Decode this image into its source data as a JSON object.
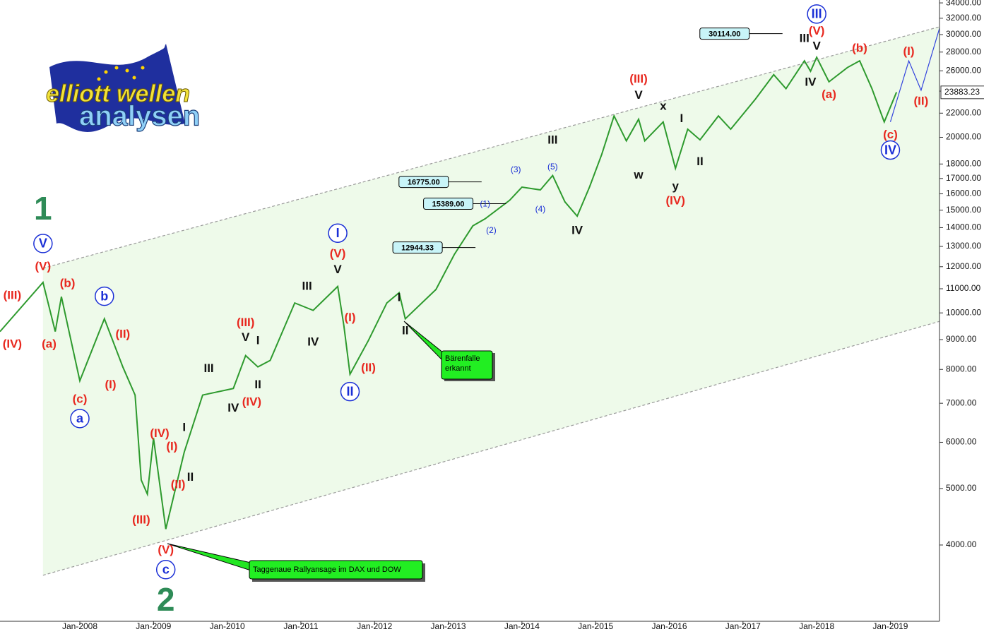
{
  "logo": {
    "line1": "elliott wellen",
    "line2": "analysen"
  },
  "chart_data": {
    "type": "line",
    "log_scale": true,
    "grid": false,
    "channel_fill": "#eefaea",
    "xlim": [
      "Dec-2006",
      "Sep-2019"
    ],
    "ylim": [
      2960,
      34390
    ],
    "xticks": [
      "Jan-2008",
      "Jan-2009",
      "Jan-2010",
      "Jan-2011",
      "Jan-2012",
      "Jan-2013",
      "Jan-2014",
      "Jan-2015",
      "Jan-2016",
      "Jan-2017",
      "Jan-2018",
      "Jan-2019"
    ],
    "yticks": [
      {
        "value": 4000,
        "label": "4000.00"
      },
      {
        "value": 5000,
        "label": "5000.00"
      },
      {
        "value": 6000,
        "label": "6000.00"
      },
      {
        "value": 7000,
        "label": "7000.00"
      },
      {
        "value": 8000,
        "label": "8000.00"
      },
      {
        "value": 9000,
        "label": "9000.00"
      },
      {
        "value": 10000,
        "label": "10000.00"
      },
      {
        "value": 11000,
        "label": "11000.00"
      },
      {
        "value": 12000,
        "label": "12000.00"
      },
      {
        "value": 13000,
        "label": "13000.00"
      },
      {
        "value": 14000,
        "label": "14000.00"
      },
      {
        "value": 15000,
        "label": "15000.00"
      },
      {
        "value": 16000,
        "label": "16000.00"
      },
      {
        "value": 17000,
        "label": "17000.00"
      },
      {
        "value": 18000,
        "label": "18000.00"
      },
      {
        "value": 20000,
        "label": "20000.00"
      },
      {
        "value": 22000,
        "label": "22000.00"
      },
      {
        "value": 24000,
        "label": "24000.00"
      },
      {
        "value": 26000,
        "label": "26000.00"
      },
      {
        "value": 28000,
        "label": "28000.00"
      },
      {
        "value": 30000,
        "label": "30000.00"
      },
      {
        "value": 32000,
        "label": "32000.00"
      },
      {
        "value": 34000,
        "label": "34000.00"
      }
    ],
    "series": [
      {
        "color": "#2e9a2e",
        "x": [
          "Dec-2006",
          "Jul-2007",
          "Sep-2007",
          "Oct-2007",
          "Jan-2008",
          "May-2008",
          "Aug-2008",
          "Oct-2008",
          "Nov-2008",
          "Dec-2008",
          "Jan-2009",
          "Mar-2009",
          "Jun-2009",
          "Sep-2009",
          "Feb-2010",
          "Apr-2010",
          "Jun-2010",
          "Aug-2010",
          "Dec-2010",
          "Mar-2011",
          "Jul-2011",
          "Aug-2011",
          "Sep-2011",
          "Dec-2011",
          "Mar-2012",
          "May-2012",
          "Jun-2012",
          "Nov-2012",
          "Feb-2013",
          "May-2013",
          "Jul-2013",
          "Nov-2013",
          "Jan-2014",
          "Apr-2014",
          "Jun-2014",
          "Aug-2014",
          "Oct-2014",
          "Dec-2014",
          "Feb-2015",
          "Apr-2015",
          "Jun-2015",
          "Aug-2015",
          "Sep-2015",
          "Dec-2015",
          "Feb-2016",
          "Apr-2016",
          "Jun-2016",
          "Sep-2016",
          "Nov-2016",
          "Mar-2017",
          "Jun-2017",
          "Aug-2017",
          "Nov-2017",
          "Dec-2017",
          "Jan-2018",
          "Mar-2018",
          "Jun-2018",
          "Aug-2018",
          "Oct-2018",
          "Dec-2018",
          "Feb-2019"
        ],
        "values": [
          9290,
          11280,
          9290,
          10660,
          7650,
          9770,
          8080,
          7230,
          5170,
          4890,
          6100,
          4260,
          5770,
          7230,
          7420,
          8450,
          8080,
          8290,
          10400,
          10100,
          11100,
          9510,
          7850,
          8970,
          10400,
          10830,
          9770,
          10970,
          12600,
          14100,
          14500,
          15600,
          16430,
          16250,
          17200,
          15500,
          14650,
          16430,
          18700,
          21760,
          19720,
          21480,
          19720,
          21250,
          17690,
          20650,
          19800,
          21760,
          20650,
          23240,
          25610,
          24230,
          27050,
          25960,
          27430,
          24900,
          26340,
          27050,
          24230,
          21250,
          23900
        ]
      },
      {
        "color": "#3344dd",
        "x": [
          "Jan-2019",
          "Apr-2019",
          "Jun-2019",
          "Sep-2019"
        ],
        "values": [
          21250,
          27050,
          24080,
          30760
        ]
      },
      {
        "color": "#999999",
        "x": [
          "Jul-2007",
          "Sep-2019"
        ],
        "values": [
          11930,
          30940
        ]
      },
      {
        "color": "#999999",
        "x": [
          "Jul-2007",
          "Sep-2019"
        ],
        "values": [
          3550,
          9670
        ]
      }
    ],
    "last_price": {
      "value": 23883.23,
      "label": "23883.23"
    },
    "price_labels": [
      {
        "value": 12944.33,
        "label": "12944.33",
        "x": "Aug-2012"
      },
      {
        "value": 15389,
        "label": "15389.00",
        "x": "Jan-2013"
      },
      {
        "value": 16775,
        "label": "16775.00",
        "x": "Sep-2012"
      },
      {
        "value": 30114,
        "label": "30114.00",
        "x": "Oct-2016"
      }
    ],
    "annotations": [
      {
        "text": "1",
        "x": "Jul-2007",
        "y": 15000,
        "color": "#2e8b57",
        "style": "big"
      },
      {
        "text": "V",
        "x": "Jul-2007",
        "y": 13150,
        "color": "#1a2fd6",
        "style": "circle"
      },
      {
        "text": "(V)",
        "x": "Jul-2007",
        "y": 12030,
        "color": "#e8281f",
        "style": "plain"
      },
      {
        "text": "(III)",
        "x": "Feb-2007",
        "y": 10730,
        "color": "#e8281f",
        "style": "plain"
      },
      {
        "text": "(IV)",
        "x": "Feb-2007",
        "y": 8850,
        "color": "#e8281f",
        "style": "plain"
      },
      {
        "text": "(a)",
        "x": "Aug-2007",
        "y": 8850,
        "color": "#e8281f",
        "style": "plain"
      },
      {
        "text": "(b)",
        "x": "Nov-2007",
        "y": 11250,
        "color": "#e8281f",
        "style": "plain"
      },
      {
        "text": "b",
        "x": "May-2008",
        "y": 10680,
        "color": "#1a2fd6",
        "style": "circle"
      },
      {
        "text": "(c)",
        "x": "Jan-2008",
        "y": 7120,
        "color": "#e8281f",
        "style": "plain"
      },
      {
        "text": "a",
        "x": "Jan-2008",
        "y": 6590,
        "color": "#1a2fd6",
        "style": "circle"
      },
      {
        "text": "(II)",
        "x": "Aug-2008",
        "y": 9200,
        "color": "#e8281f",
        "style": "plain"
      },
      {
        "text": "(I)",
        "x": "Jun-2008",
        "y": 7540,
        "color": "#e8281f",
        "style": "plain"
      },
      {
        "text": "(IV)",
        "x": "Feb-2009",
        "y": 6220,
        "color": "#e8281f",
        "style": "plain"
      },
      {
        "text": "(I)",
        "x": "Apr-2009",
        "y": 5910,
        "color": "#e8281f",
        "style": "plain"
      },
      {
        "text": "(II)",
        "x": "May-2009",
        "y": 5080,
        "color": "#e8281f",
        "style": "plain"
      },
      {
        "text": "(III)",
        "x": "Nov-2008",
        "y": 4420,
        "color": "#e8281f",
        "style": "plain"
      },
      {
        "text": "(V)",
        "x": "Mar-2009",
        "y": 3930,
        "color": "#e8281f",
        "style": "plain"
      },
      {
        "text": "c",
        "x": "Mar-2009",
        "y": 3630,
        "color": "#1a2fd6",
        "style": "circle"
      },
      {
        "text": "2",
        "x": "Mar-2009",
        "y": 3200,
        "color": "#2e8b57",
        "style": "big"
      },
      {
        "text": "I",
        "x": "Jun-2009",
        "y": 6370,
        "color": "#111111",
        "style": "plain"
      },
      {
        "text": "II",
        "x": "Jul-2009",
        "y": 5230,
        "color": "#111111",
        "style": "plain"
      },
      {
        "text": "III",
        "x": "Oct-2009",
        "y": 8040,
        "color": "#111111",
        "style": "plain"
      },
      {
        "text": "IV",
        "x": "Feb-2010",
        "y": 6880,
        "color": "#111111",
        "style": "plain"
      },
      {
        "text": "(IV)",
        "x": "May-2010",
        "y": 7040,
        "color": "#e8281f",
        "style": "plain"
      },
      {
        "text": "II",
        "x": "Jun-2010",
        "y": 7540,
        "color": "#111111",
        "style": "plain"
      },
      {
        "text": "(III)",
        "x": "Apr-2010",
        "y": 9640,
        "color": "#e8281f",
        "style": "plain"
      },
      {
        "text": "V",
        "x": "Apr-2010",
        "y": 9090,
        "color": "#111111",
        "style": "plain"
      },
      {
        "text": "I",
        "x": "Jun-2010",
        "y": 8970,
        "color": "#111111",
        "style": "plain"
      },
      {
        "text": "III",
        "x": "Feb-2011",
        "y": 11120,
        "color": "#111111",
        "style": "plain"
      },
      {
        "text": "IV",
        "x": "Mar-2011",
        "y": 8930,
        "color": "#111111",
        "style": "plain"
      },
      {
        "text": "I",
        "x": "Jul-2011",
        "y": 13700,
        "color": "#1a2fd6",
        "style": "circle"
      },
      {
        "text": "(V)",
        "x": "Jul-2011",
        "y": 12640,
        "color": "#e8281f",
        "style": "plain"
      },
      {
        "text": "V",
        "x": "Jul-2011",
        "y": 11880,
        "color": "#111111",
        "style": "plain"
      },
      {
        "text": "(I)",
        "x": "Sep-2011",
        "y": 9820,
        "color": "#e8281f",
        "style": "plain"
      },
      {
        "text": "(II)",
        "x": "Dec-2011",
        "y": 8060,
        "color": "#e8281f",
        "style": "plain"
      },
      {
        "text": "II",
        "x": "Sep-2011",
        "y": 7330,
        "color": "#1a2fd6",
        "style": "circle"
      },
      {
        "text": "I",
        "x": "May-2012",
        "y": 10640,
        "color": "#111111",
        "style": "plain"
      },
      {
        "text": "II",
        "x": "Jun-2012",
        "y": 9330,
        "color": "#111111",
        "style": "plain"
      },
      {
        "text": "(1)",
        "x": "Jul-2013",
        "y": 15400,
        "color": "#1a2fd6",
        "style": "small"
      },
      {
        "text": "(2)",
        "x": "Aug-2013",
        "y": 13860,
        "color": "#1a2fd6",
        "style": "small"
      },
      {
        "text": "(3)",
        "x": "Dec-2013",
        "y": 17620,
        "color": "#1a2fd6",
        "style": "small"
      },
      {
        "text": "(4)",
        "x": "Apr-2014",
        "y": 15070,
        "color": "#1a2fd6",
        "style": "small"
      },
      {
        "text": "(5)",
        "x": "Jun-2014",
        "y": 17820,
        "color": "#1a2fd6",
        "style": "small"
      },
      {
        "text": "III",
        "x": "Jun-2014",
        "y": 19800,
        "color": "#111111",
        "style": "plain"
      },
      {
        "text": "IV",
        "x": "Oct-2014",
        "y": 13860,
        "color": "#111111",
        "style": "plain"
      },
      {
        "text": "(III)",
        "x": "Aug-2015",
        "y": 25200,
        "color": "#e8281f",
        "style": "plain"
      },
      {
        "text": "V",
        "x": "Aug-2015",
        "y": 23640,
        "color": "#111111",
        "style": "plain"
      },
      {
        "text": "x",
        "x": "Dec-2015",
        "y": 22650,
        "color": "#111111",
        "style": "plain"
      },
      {
        "text": "w",
        "x": "Aug-2015",
        "y": 17260,
        "color": "#111111",
        "style": "plain"
      },
      {
        "text": "I",
        "x": "Mar-2016",
        "y": 21550,
        "color": "#111111",
        "style": "plain"
      },
      {
        "text": "II",
        "x": "Jun-2016",
        "y": 18180,
        "color": "#111111",
        "style": "plain"
      },
      {
        "text": "y",
        "x": "Feb-2016",
        "y": 16500,
        "color": "#111111",
        "style": "plain"
      },
      {
        "text": "(IV)",
        "x": "Feb-2016",
        "y": 15590,
        "color": "#e8281f",
        "style": "plain"
      },
      {
        "text": "III",
        "x": "Nov-2017",
        "y": 29600,
        "color": "#111111",
        "style": "plain"
      },
      {
        "text": "V",
        "x": "Jan-2018",
        "y": 28680,
        "color": "#111111",
        "style": "plain"
      },
      {
        "text": "(V)",
        "x": "Jan-2018",
        "y": 30450,
        "color": "#e8281f",
        "style": "plain"
      },
      {
        "text": "III",
        "x": "Jan-2018",
        "y": 32540,
        "color": "#1a2fd6",
        "style": "circle"
      },
      {
        "text": "IV",
        "x": "Dec-2017",
        "y": 24880,
        "color": "#111111",
        "style": "plain"
      },
      {
        "text": "(a)",
        "x": "Mar-2018",
        "y": 23720,
        "color": "#e8281f",
        "style": "plain"
      },
      {
        "text": "(b)",
        "x": "Aug-2018",
        "y": 28470,
        "color": "#e8281f",
        "style": "plain"
      },
      {
        "text": "(c)",
        "x": "Jan-2019",
        "y": 20210,
        "color": "#e8281f",
        "style": "plain"
      },
      {
        "text": "IV",
        "x": "Jan-2019",
        "y": 19020,
        "color": "#1a2fd6",
        "style": "circle"
      },
      {
        "text": "(I)",
        "x": "Apr-2019",
        "y": 28080,
        "color": "#e8281f",
        "style": "plain"
      },
      {
        "text": "(II)",
        "x": "Jun-2019",
        "y": 23100,
        "color": "#e8281f",
        "style": "plain"
      }
    ],
    "callouts": [
      {
        "lines": [
          "Bärenfalle",
          "erkannt"
        ]
      },
      {
        "lines": [
          "Taggenaue Rallyansage im DAX und DOW"
        ]
      }
    ]
  }
}
